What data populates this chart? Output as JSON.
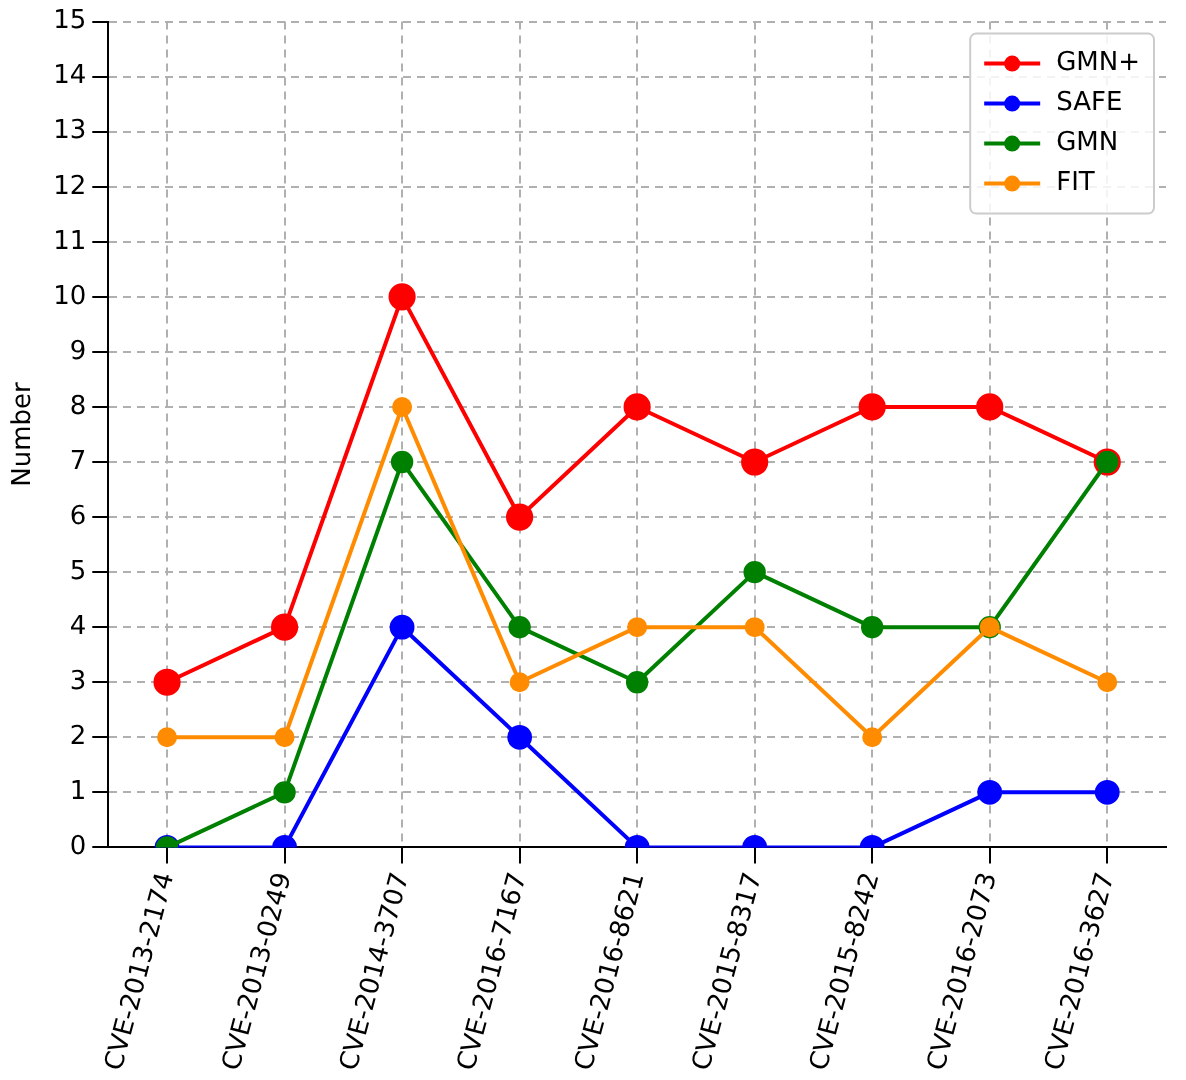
{
  "chart_data": {
    "type": "line",
    "ylabel": "Number",
    "categories": [
      "CVE-2013-2174",
      "CVE-2013-0249",
      "CVE-2014-3707",
      "CVE-2016-7167",
      "CVE-2016-8621",
      "CVE-2015-8317",
      "CVE-2015-8242",
      "CVE-2016-2073",
      "CVE-2016-3627"
    ],
    "series": [
      {
        "name": "GMN+",
        "color": "#ff0000",
        "values": [
          3,
          4,
          10,
          6,
          8,
          7,
          8,
          8,
          7
        ]
      },
      {
        "name": "SAFE",
        "color": "#0000ff",
        "values": [
          0,
          0,
          4,
          2,
          0,
          0,
          0,
          1,
          1
        ]
      },
      {
        "name": "GMN",
        "color": "#008000",
        "values": [
          0,
          1,
          7,
          4,
          3,
          5,
          4,
          4,
          7
        ]
      },
      {
        "name": "FIT",
        "color": "#ff8c00",
        "values": [
          2,
          2,
          8,
          3,
          4,
          4,
          2,
          4,
          3
        ]
      }
    ],
    "ylim": [
      0,
      15
    ],
    "yticks": [
      0,
      1,
      2,
      3,
      4,
      5,
      6,
      7,
      8,
      9,
      10,
      11,
      12,
      13,
      14,
      15
    ],
    "grid": true,
    "legend": "top right",
    "marker": "circle",
    "line_style": "solid"
  }
}
